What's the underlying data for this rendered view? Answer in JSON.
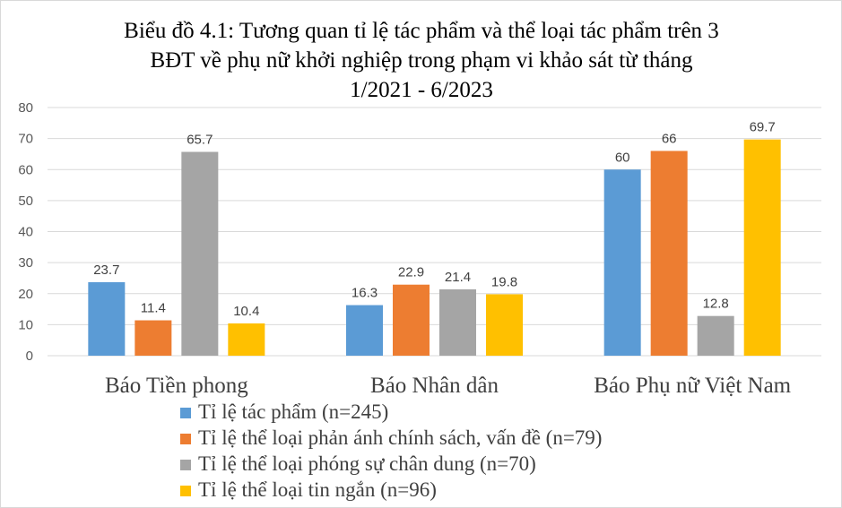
{
  "chart_data": {
    "type": "bar",
    "title": [
      "Biểu đồ 4.1: Tương quan tỉ lệ tác phẩm và thể loại tác phẩm trên 3",
      "BĐT về phụ nữ khởi nghiệp trong phạm vi khảo sát từ tháng",
      "1/2021 - 6/2023"
    ],
    "categories": [
      "Báo Tiền phong",
      "Báo Nhân dân",
      "Báo Phụ nữ Việt Nam"
    ],
    "series": [
      {
        "name": "Tỉ lệ tác phẩm (n=245)",
        "color": "#5b9bd5",
        "values": [
          23.7,
          16.3,
          60
        ]
      },
      {
        "name": "Tỉ lệ thể loại phản ánh chính sách, vấn đề (n=79)",
        "color": "#ed7d31",
        "values": [
          11.4,
          22.9,
          66
        ]
      },
      {
        "name": "Tỉ lệ thể loại phóng sự chân dung (n=70)",
        "color": "#a5a5a5",
        "values": [
          65.7,
          21.4,
          12.8
        ]
      },
      {
        "name": "Tỉ lệ thể loại tin ngắn (n=96)",
        "color": "#ffc000",
        "values": [
          10.4,
          19.8,
          69.7
        ]
      }
    ],
    "ylim": [
      0,
      80
    ],
    "yticks": [
      0,
      10,
      20,
      30,
      40,
      50,
      60,
      70,
      80
    ],
    "grid": true,
    "legend_position": "bottom",
    "data_labels": true
  }
}
